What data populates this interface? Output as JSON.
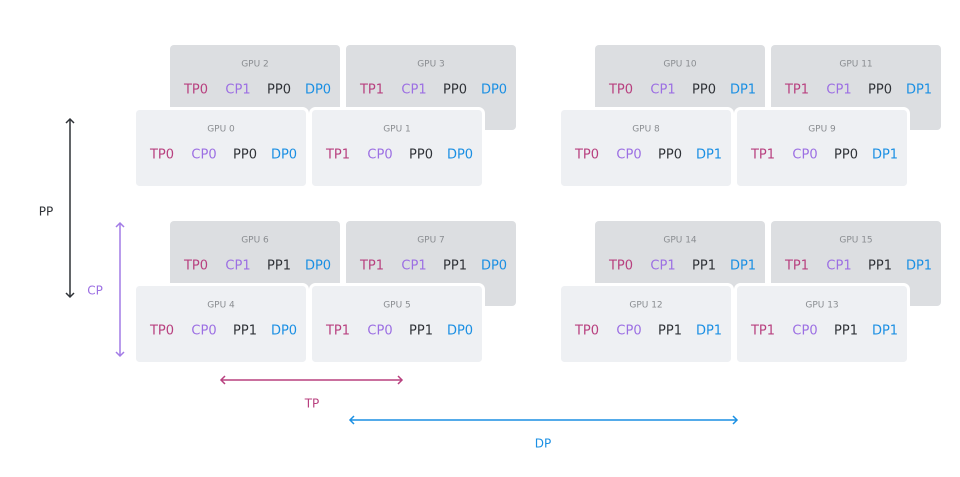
{
  "gpus": [
    {
      "label": "GPU 0",
      "tags": [
        "TP0",
        "CP0",
        "PP0",
        "DP0"
      ]
    },
    {
      "label": "GPU 1",
      "tags": [
        "TP1",
        "CP0",
        "PP0",
        "DP0"
      ]
    },
    {
      "label": "GPU 2",
      "tags": [
        "TP0",
        "CP1",
        "PP0",
        "DP0"
      ]
    },
    {
      "label": "GPU 3",
      "tags": [
        "TP1",
        "CP1",
        "PP0",
        "DP0"
      ]
    },
    {
      "label": "GPU 4",
      "tags": [
        "TP0",
        "CP0",
        "PP1",
        "DP0"
      ]
    },
    {
      "label": "GPU 5",
      "tags": [
        "TP1",
        "CP0",
        "PP1",
        "DP0"
      ]
    },
    {
      "label": "GPU 6",
      "tags": [
        "TP0",
        "CP1",
        "PP1",
        "DP0"
      ]
    },
    {
      "label": "GPU 7",
      "tags": [
        "TP1",
        "CP1",
        "PP1",
        "DP0"
      ]
    },
    {
      "label": "GPU 8",
      "tags": [
        "TP0",
        "CP0",
        "PP0",
        "DP1"
      ]
    },
    {
      "label": "GPU 9",
      "tags": [
        "TP1",
        "CP0",
        "PP0",
        "DP1"
      ]
    },
    {
      "label": "GPU 10",
      "tags": [
        "TP0",
        "CP1",
        "PP0",
        "DP1"
      ]
    },
    {
      "label": "GPU 11",
      "tags": [
        "TP1",
        "CP1",
        "PP0",
        "DP1"
      ]
    },
    {
      "label": "GPU 12",
      "tags": [
        "TP0",
        "CP0",
        "PP1",
        "DP1"
      ]
    },
    {
      "label": "GPU 13",
      "tags": [
        "TP1",
        "CP0",
        "PP1",
        "DP1"
      ]
    },
    {
      "label": "GPU 14",
      "tags": [
        "TP0",
        "CP1",
        "PP1",
        "DP1"
      ]
    },
    {
      "label": "GPU 15",
      "tags": [
        "TP1",
        "CP1",
        "PP1",
        "DP1"
      ]
    }
  ],
  "axes": {
    "pp": "PP",
    "cp": "CP",
    "tp": "TP",
    "dp": "DP"
  }
}
